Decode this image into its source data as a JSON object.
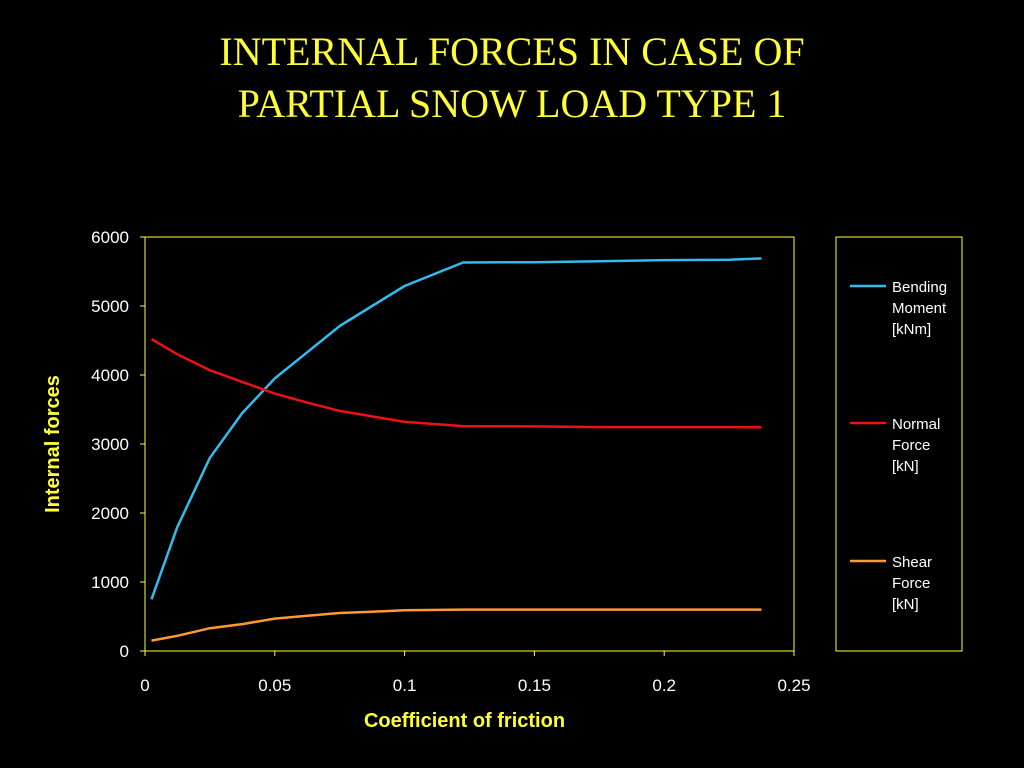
{
  "slide": {
    "title_line1": "INTERNAL FORCES IN CASE OF",
    "title_line2": "PARTIAL SNOW LOAD TYPE 1"
  },
  "colors": {
    "background": "#000000",
    "title": "#ffff33",
    "axis": "#ffff33",
    "tick_labels": "#ffffff",
    "axis_titles": "#ffff33",
    "legend_text": "#ffffff"
  },
  "chart_data": {
    "type": "line",
    "title": "",
    "xlabel": "Coefficient of friction",
    "ylabel": "Internal forces",
    "xlim": [
      0,
      0.25
    ],
    "ylim": [
      0,
      6000
    ],
    "xticks": [
      0,
      0.05,
      0.1,
      0.15,
      0.2,
      0.25
    ],
    "xtick_labels": [
      "0",
      "0.05",
      "0.1",
      "0.15",
      "0.2",
      "0.25"
    ],
    "yticks": [
      0,
      1000,
      2000,
      3000,
      4000,
      5000,
      6000
    ],
    "ytick_labels": [
      "0",
      "1000",
      "2000",
      "3000",
      "4000",
      "5000",
      "6000"
    ],
    "grid": false,
    "legend_position": "right",
    "series": [
      {
        "name": "Bending Moment [kNm]",
        "legend_lines": [
          "Bending",
          "Moment",
          "[kNm]"
        ],
        "color": "#33bbee",
        "x": [
          0.0025,
          0.0125,
          0.025,
          0.0375,
          0.05,
          0.0625,
          0.075,
          0.0875,
          0.1,
          0.1225,
          0.15,
          0.175,
          0.2,
          0.225,
          0.2375
        ],
        "y": [
          750,
          1800,
          2800,
          3450,
          3950,
          4330,
          4710,
          5000,
          5290,
          5630,
          5635,
          5650,
          5665,
          5670,
          5690
        ]
      },
      {
        "name": "Normal Force [kN]",
        "legend_lines": [
          "Normal",
          "Force",
          "[kN]"
        ],
        "color": "#ee1111",
        "x": [
          0.0025,
          0.0125,
          0.025,
          0.0375,
          0.05,
          0.0625,
          0.075,
          0.0875,
          0.1,
          0.1225,
          0.15,
          0.175,
          0.2,
          0.225,
          0.2375
        ],
        "y": [
          4520,
          4300,
          4070,
          3900,
          3730,
          3600,
          3480,
          3400,
          3320,
          3260,
          3255,
          3245,
          3245,
          3245,
          3240
        ]
      },
      {
        "name": "Shear Force [kN]",
        "legend_lines": [
          "Shear",
          "Force",
          "[kN]"
        ],
        "color": "#ff9933",
        "x": [
          0.0025,
          0.0125,
          0.025,
          0.0375,
          0.05,
          0.0625,
          0.075,
          0.0875,
          0.1,
          0.1225,
          0.15,
          0.175,
          0.2,
          0.225,
          0.2375
        ],
        "y": [
          150,
          220,
          330,
          390,
          470,
          510,
          550,
          570,
          590,
          600,
          600,
          600,
          600,
          600,
          600
        ]
      }
    ]
  }
}
